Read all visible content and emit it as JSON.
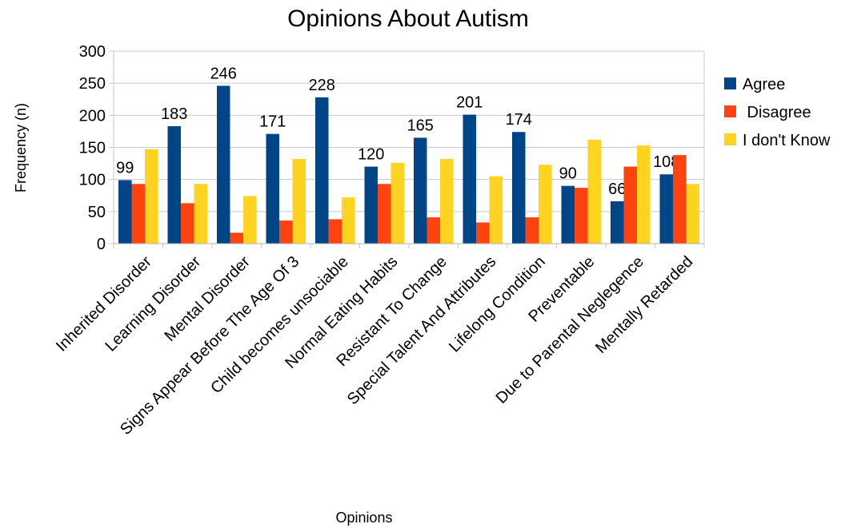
{
  "chart_data": {
    "type": "bar",
    "title": "Opinions About Autism",
    "xlabel": "Opinions",
    "ylabel": "Frequency (n)",
    "ylim": [
      0,
      300
    ],
    "yticks": [
      "0",
      "50",
      "100",
      "150",
      "200",
      "250",
      "300"
    ],
    "grid": true,
    "legend_position": "right",
    "categories": [
      "Inherited Disorder",
      "Learning Disorder",
      "Mental Disorder",
      "Signs Appear Before The Age Of 3",
      "Child becomes unsociable",
      "Normal Eating Habits",
      "Resistant To Change",
      "Special Talent And Attributes",
      "Lifelong Condition",
      "Preventable",
      "Due to Parental Neglegence",
      "Mentally Retarded"
    ],
    "series": [
      {
        "name": "Agree",
        "color": "#004586",
        "values": [
          99,
          183,
          246,
          171,
          228,
          120,
          165,
          201,
          174,
          90,
          66,
          108
        ],
        "labels": [
          "99",
          "183",
          "246",
          "171",
          "228",
          "120",
          "165",
          "201",
          "174",
          "90",
          "66",
          "108"
        ]
      },
      {
        "name": " Disagree",
        "color": "#ff420e",
        "values": [
          93,
          63,
          17,
          36,
          38,
          93,
          41,
          33,
          41,
          87,
          120,
          138
        ]
      },
      {
        "name": "I don't Know",
        "color": "#ffd320",
        "values": [
          147,
          93,
          74,
          132,
          72,
          126,
          132,
          105,
          123,
          162,
          153,
          93
        ]
      }
    ]
  }
}
